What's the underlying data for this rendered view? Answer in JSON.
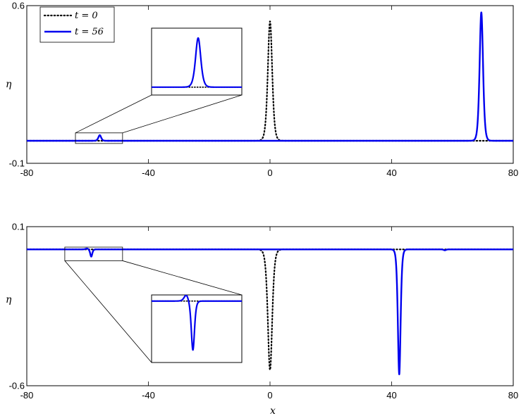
{
  "chart_data": [
    {
      "type": "line",
      "ylabel": "η",
      "xlim": [
        -80,
        80
      ],
      "ylim": [
        -0.1,
        0.6
      ],
      "xticks": [
        "-80",
        "-40",
        "0",
        "40",
        "80"
      ],
      "yticks": [
        "-0.1",
        "0.6"
      ],
      "legend": {
        "position": "top-left",
        "entries": [
          "t = 0",
          "t = 56"
        ]
      },
      "series": [
        {
          "name": "t = 0",
          "style": "dotted",
          "color": "#000000",
          "solitary_waves": [
            {
              "center": 0,
              "amplitude": 0.53,
              "width": 0.95
            }
          ],
          "small_waves": []
        },
        {
          "name": "t = 56",
          "style": "solid",
          "color": "#0000ee",
          "solitary_waves": [
            {
              "center": 69.5,
              "amplitude": 0.57,
              "width": 0.75
            }
          ],
          "small_waves": [
            {
              "center": -56,
              "amplitude": 0.025,
              "width": 0.6
            }
          ]
        }
      ],
      "inset": {
        "zoom_x": [
          -64,
          -48.5
        ],
        "zoom_y": [
          -0.012,
          0.035
        ],
        "y_range": [
          -0.004,
          0.03
        ]
      }
    },
    {
      "type": "line",
      "xlabel": "x",
      "ylabel": "η",
      "xlim": [
        -80,
        80
      ],
      "ylim": [
        -0.6,
        0.1
      ],
      "xticks": [
        "-80",
        "-40",
        "0",
        "40",
        "80"
      ],
      "yticks": [
        "-0.6",
        "0.1"
      ],
      "series": [
        {
          "name": "t = 0",
          "style": "dotted",
          "color": "#000000",
          "solitary_waves": [
            {
              "center": 0,
              "amplitude": -0.53,
              "width": 0.95
            }
          ],
          "small_waves": []
        },
        {
          "name": "t = 56",
          "style": "solid",
          "color": "#0000ee",
          "solitary_waves": [
            {
              "center": 42.5,
              "amplitude": -0.55,
              "width": 0.6
            }
          ],
          "small_waves": [
            {
              "center": -58.8,
              "amplitude": -0.032,
              "width": 0.45
            },
            {
              "center": -60.2,
              "amplitude": 0.004,
              "width": 0.6
            },
            {
              "center": 57.5,
              "amplitude": -0.004,
              "width": 0.5
            }
          ]
        }
      ],
      "inset": {
        "zoom_x": [
          -67.5,
          -48.5
        ],
        "zoom_y": [
          -0.05,
          0.01
        ],
        "y_range": [
          -0.04,
          0.004
        ]
      }
    }
  ]
}
